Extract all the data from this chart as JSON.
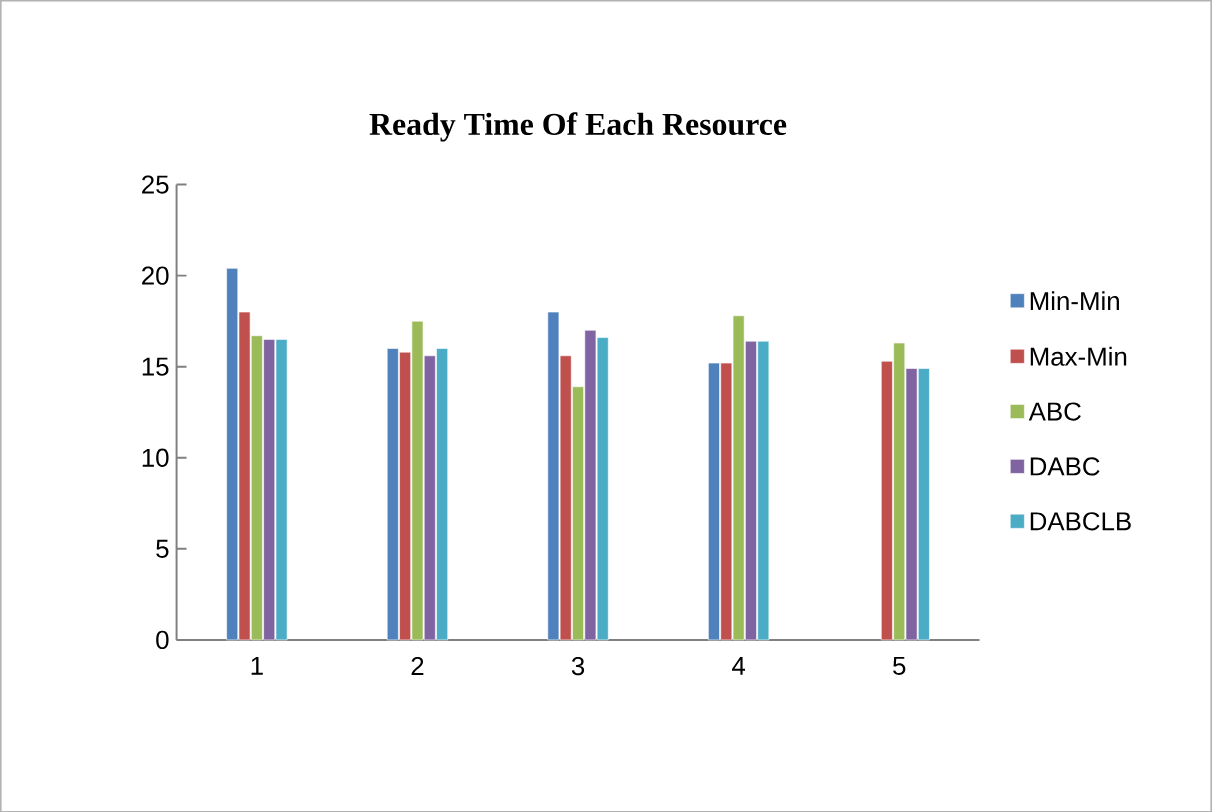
{
  "chart_data": {
    "type": "bar",
    "title": "Ready Time Of Each Resource",
    "categories": [
      "1",
      "2",
      "3",
      "4",
      "5"
    ],
    "series": [
      {
        "name": "Min-Min",
        "color": "#4f81bd",
        "values": [
          20.4,
          16.0,
          18.0,
          15.2,
          null
        ]
      },
      {
        "name": "Max-Min",
        "color": "#c0504d",
        "values": [
          18.0,
          15.8,
          15.6,
          15.2,
          15.3
        ]
      },
      {
        "name": "ABC",
        "color": "#9bbb59",
        "values": [
          16.7,
          17.5,
          13.9,
          17.8,
          16.3
        ]
      },
      {
        "name": "DABC",
        "color": "#8064a2",
        "values": [
          16.5,
          15.6,
          17.0,
          16.4,
          14.9
        ]
      },
      {
        "name": "DABCLB",
        "color": "#4bacc6",
        "values": [
          16.5,
          16.0,
          16.6,
          16.4,
          14.9
        ]
      }
    ],
    "ylim": [
      0,
      25
    ],
    "yticks": [
      0,
      5,
      10,
      15,
      20,
      25
    ],
    "grid": false,
    "legend": "right"
  }
}
